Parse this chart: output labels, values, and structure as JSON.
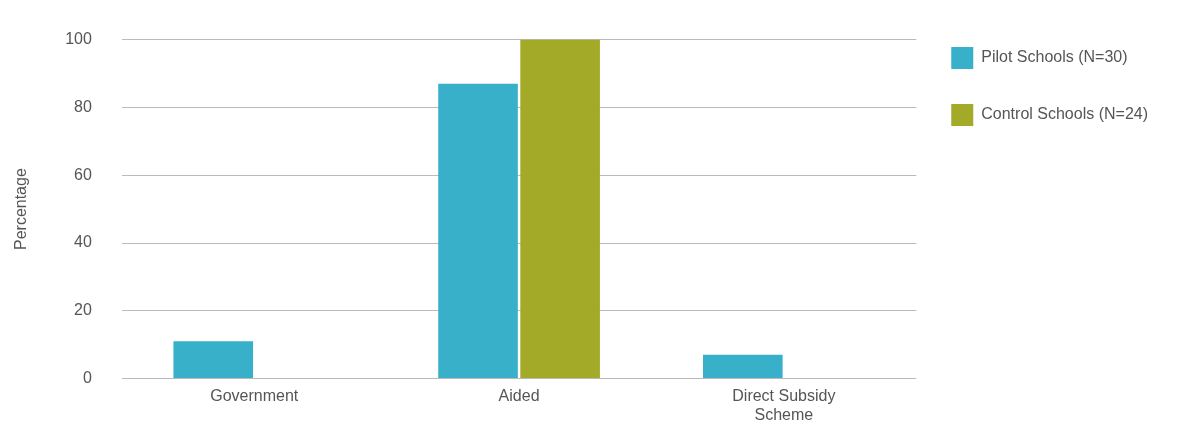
{
  "chart_data": {
    "type": "bar",
    "ylabel": "Percentage",
    "categories": [
      "Government",
      "Aided",
      "Direct Subsidy Scheme"
    ],
    "series": [
      {
        "name": "Pilot Schools (N=30)",
        "color": "#38b0c9",
        "values": [
          11,
          87,
          7
        ]
      },
      {
        "name": "Control Schools (N=24)",
        "color": "#a2aa28",
        "values": [
          0,
          100,
          0
        ]
      }
    ],
    "ylim": [
      0,
      100
    ],
    "yticks": [
      0,
      20,
      40,
      60,
      80,
      100
    ],
    "grid": "y",
    "legend": "right"
  }
}
